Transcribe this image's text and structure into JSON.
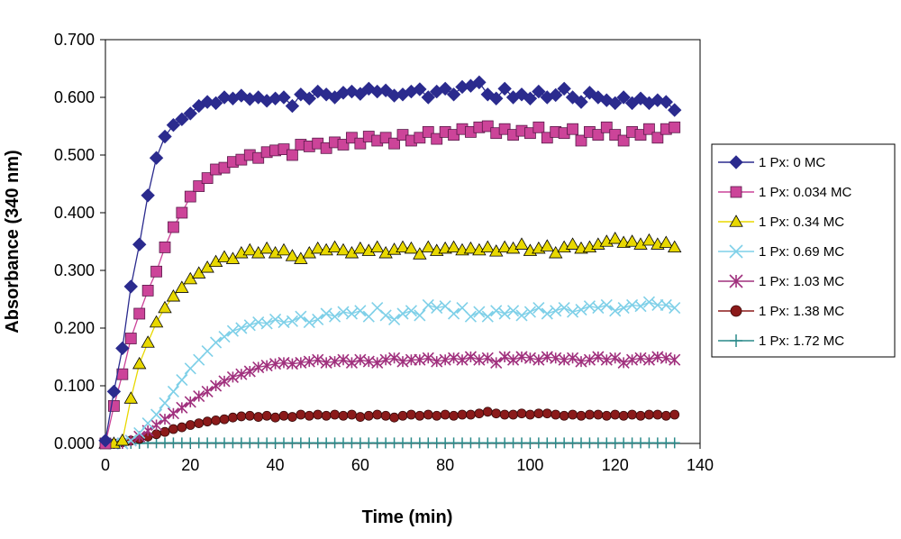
{
  "chart_data": {
    "type": "line",
    "title": "",
    "xlabel": "Time (min)",
    "ylabel": "Absorbance (340 nm)",
    "xlim": [
      0,
      140
    ],
    "ylim": [
      0,
      0.7
    ],
    "x_ticks": [
      "0",
      "20",
      "40",
      "60",
      "80",
      "100",
      "120",
      "140"
    ],
    "y_ticks": [
      "0.000",
      "0.100",
      "0.200",
      "0.300",
      "0.400",
      "0.500",
      "0.600",
      "0.700"
    ],
    "grid": false,
    "legend_position": "right",
    "x": [
      0,
      2,
      4,
      6,
      8,
      10,
      12,
      14,
      16,
      18,
      20,
      22,
      24,
      26,
      28,
      30,
      32,
      34,
      36,
      38,
      40,
      42,
      44,
      46,
      48,
      50,
      52,
      54,
      56,
      58,
      60,
      62,
      64,
      66,
      68,
      70,
      72,
      74,
      76,
      78,
      80,
      82,
      84,
      86,
      88,
      90,
      92,
      94,
      96,
      98,
      100,
      102,
      104,
      106,
      108,
      110,
      112,
      114,
      116,
      118,
      120,
      122,
      124,
      126,
      128,
      130,
      132,
      134
    ],
    "series": [
      {
        "name": "1 Px: 0 MC",
        "color": "#2b2b8e",
        "marker": "diamond",
        "values": [
          0.005,
          0.09,
          0.165,
          0.272,
          0.345,
          0.43,
          0.495,
          0.532,
          0.552,
          0.562,
          0.572,
          0.585,
          0.592,
          0.59,
          0.6,
          0.598,
          0.603,
          0.597,
          0.6,
          0.594,
          0.598,
          0.6,
          0.585,
          0.605,
          0.598,
          0.61,
          0.605,
          0.6,
          0.608,
          0.61,
          0.606,
          0.615,
          0.61,
          0.612,
          0.603,
          0.605,
          0.61,
          0.614,
          0.6,
          0.61,
          0.615,
          0.605,
          0.618,
          0.62,
          0.626,
          0.605,
          0.598,
          0.615,
          0.6,
          0.605,
          0.598,
          0.61,
          0.6,
          0.604,
          0.615,
          0.6,
          0.592,
          0.608,
          0.6,
          0.595,
          0.59,
          0.6,
          0.59,
          0.598,
          0.59,
          0.595,
          0.592,
          0.578
        ]
      },
      {
        "name": "1 Px: 0.034 MC",
        "color": "#cc4499",
        "marker": "square",
        "values": [
          0.0,
          0.065,
          0.12,
          0.182,
          0.225,
          0.265,
          0.298,
          0.34,
          0.375,
          0.4,
          0.428,
          0.446,
          0.46,
          0.475,
          0.478,
          0.488,
          0.492,
          0.5,
          0.495,
          0.505,
          0.508,
          0.51,
          0.5,
          0.518,
          0.515,
          0.52,
          0.512,
          0.522,
          0.518,
          0.53,
          0.52,
          0.532,
          0.525,
          0.53,
          0.52,
          0.535,
          0.525,
          0.53,
          0.54,
          0.528,
          0.54,
          0.535,
          0.545,
          0.54,
          0.548,
          0.55,
          0.538,
          0.545,
          0.535,
          0.542,
          0.538,
          0.548,
          0.53,
          0.54,
          0.538,
          0.545,
          0.525,
          0.54,
          0.535,
          0.548,
          0.535,
          0.525,
          0.54,
          0.535,
          0.545,
          0.53,
          0.545,
          0.548
        ]
      },
      {
        "name": "1 Px: 0.34 MC",
        "color": "#e8d800",
        "marker": "triangle",
        "values": [
          0.0,
          0.0,
          0.005,
          0.078,
          0.138,
          0.175,
          0.21,
          0.235,
          0.255,
          0.27,
          0.285,
          0.295,
          0.305,
          0.315,
          0.323,
          0.32,
          0.33,
          0.335,
          0.33,
          0.338,
          0.33,
          0.335,
          0.325,
          0.32,
          0.33,
          0.338,
          0.335,
          0.34,
          0.335,
          0.33,
          0.338,
          0.334,
          0.34,
          0.33,
          0.336,
          0.34,
          0.338,
          0.328,
          0.34,
          0.334,
          0.338,
          0.34,
          0.335,
          0.338,
          0.335,
          0.34,
          0.333,
          0.34,
          0.338,
          0.345,
          0.334,
          0.338,
          0.342,
          0.33,
          0.34,
          0.345,
          0.338,
          0.34,
          0.345,
          0.35,
          0.355,
          0.348,
          0.35,
          0.345,
          0.352,
          0.345,
          0.348,
          0.34
        ]
      },
      {
        "name": "1 Px: 0.69 MC",
        "color": "#7fd0e8",
        "marker": "x",
        "values": [
          0.0,
          0.0,
          0.0,
          0.005,
          0.018,
          0.035,
          0.05,
          0.07,
          0.09,
          0.11,
          0.13,
          0.145,
          0.16,
          0.175,
          0.185,
          0.195,
          0.2,
          0.205,
          0.21,
          0.208,
          0.215,
          0.21,
          0.212,
          0.22,
          0.21,
          0.215,
          0.225,
          0.22,
          0.228,
          0.225,
          0.23,
          0.22,
          0.235,
          0.222,
          0.215,
          0.225,
          0.23,
          0.222,
          0.24,
          0.235,
          0.238,
          0.225,
          0.235,
          0.22,
          0.228,
          0.22,
          0.23,
          0.225,
          0.23,
          0.222,
          0.228,
          0.235,
          0.225,
          0.23,
          0.235,
          0.228,
          0.232,
          0.238,
          0.235,
          0.24,
          0.23,
          0.235,
          0.24,
          0.238,
          0.245,
          0.24,
          0.24,
          0.235
        ]
      },
      {
        "name": "1 Px: 1.03 MC",
        "color": "#a0307d",
        "marker": "star",
        "values": [
          0.0,
          0.0,
          0.0,
          0.005,
          0.012,
          0.022,
          0.032,
          0.042,
          0.052,
          0.062,
          0.072,
          0.082,
          0.09,
          0.1,
          0.108,
          0.115,
          0.12,
          0.125,
          0.132,
          0.135,
          0.138,
          0.14,
          0.138,
          0.14,
          0.142,
          0.145,
          0.14,
          0.142,
          0.145,
          0.14,
          0.145,
          0.142,
          0.14,
          0.145,
          0.148,
          0.142,
          0.145,
          0.145,
          0.148,
          0.142,
          0.145,
          0.148,
          0.145,
          0.15,
          0.145,
          0.148,
          0.14,
          0.15,
          0.145,
          0.15,
          0.148,
          0.145,
          0.15,
          0.148,
          0.145,
          0.148,
          0.142,
          0.145,
          0.15,
          0.145,
          0.148,
          0.14,
          0.145,
          0.148,
          0.145,
          0.15,
          0.148,
          0.145
        ]
      },
      {
        "name": "1 Px: 1.38 MC",
        "color": "#8b1a1a",
        "marker": "circle",
        "values": [
          0.0,
          0.0,
          0.002,
          0.005,
          0.008,
          0.012,
          0.016,
          0.02,
          0.025,
          0.028,
          0.032,
          0.035,
          0.038,
          0.04,
          0.042,
          0.045,
          0.047,
          0.048,
          0.046,
          0.048,
          0.045,
          0.048,
          0.046,
          0.05,
          0.048,
          0.05,
          0.048,
          0.05,
          0.048,
          0.05,
          0.046,
          0.048,
          0.05,
          0.048,
          0.045,
          0.048,
          0.05,
          0.048,
          0.05,
          0.048,
          0.05,
          0.048,
          0.05,
          0.05,
          0.052,
          0.055,
          0.052,
          0.05,
          0.05,
          0.052,
          0.05,
          0.052,
          0.052,
          0.05,
          0.048,
          0.05,
          0.048,
          0.05,
          0.05,
          0.048,
          0.05,
          0.048,
          0.05,
          0.048,
          0.05,
          0.05,
          0.048,
          0.05
        ]
      },
      {
        "name": "1 Px: 1.72 MC",
        "color": "#2a8a8a",
        "marker": "plus",
        "values": [
          0.0,
          0.0,
          0.0,
          0.0,
          0.0,
          0.001,
          0.001,
          0.001,
          0.001,
          0.001,
          0.001,
          0.001,
          0.001,
          0.001,
          0.001,
          0.001,
          0.001,
          0.001,
          0.001,
          0.001,
          0.001,
          0.001,
          0.001,
          0.001,
          0.001,
          0.001,
          0.001,
          0.001,
          0.001,
          0.001,
          0.001,
          0.001,
          0.001,
          0.001,
          0.001,
          0.001,
          0.001,
          0.001,
          0.001,
          0.001,
          0.001,
          0.001,
          0.001,
          0.001,
          0.001,
          0.001,
          0.001,
          0.001,
          0.001,
          0.001,
          0.001,
          0.001,
          0.001,
          0.001,
          0.001,
          0.001,
          0.001,
          0.001,
          0.001,
          0.001,
          0.001,
          0.001,
          0.001,
          0.001,
          0.001,
          0.001,
          0.001,
          0.001
        ]
      }
    ]
  }
}
